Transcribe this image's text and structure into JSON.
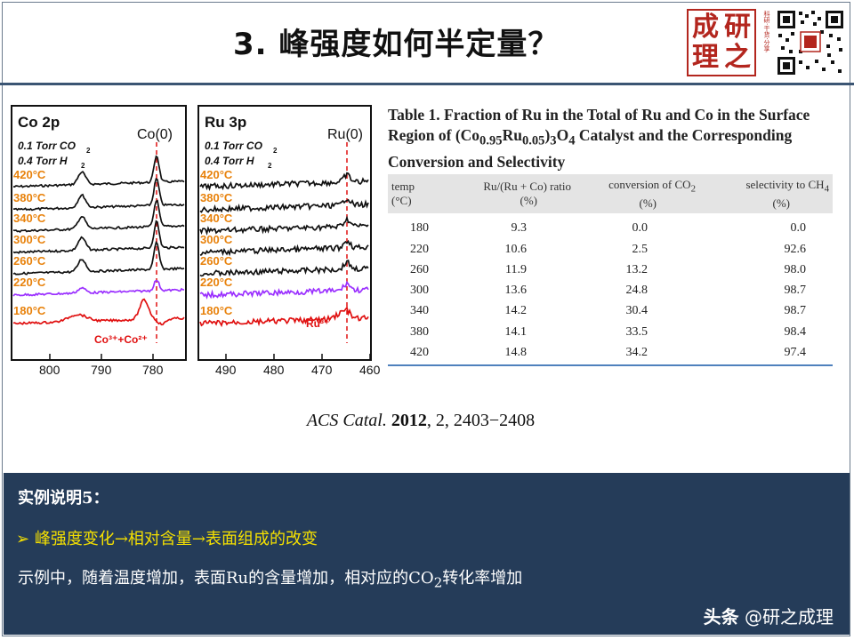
{
  "slide": {
    "title": "3. 峰强度如何半定量？"
  },
  "logo": {
    "seal_chars": [
      "成",
      "研",
      "理",
      "之"
    ],
    "seal_subtext": "科研·干货·分享"
  },
  "figure": {
    "panels": [
      {
        "title": "Co 2p",
        "peak_label": "Co(0)",
        "conditions": [
          "0.1 Torr CO",
          "0.4 Torr H"
        ],
        "condition_subs": [
          "2",
          "2"
        ],
        "temps": [
          "420°C",
          "380°C",
          "340°C",
          "300°C",
          "260°C",
          "220°C",
          "180°C"
        ],
        "species_label": "Co³⁺+Co²⁺",
        "x_ticks": [
          "800",
          "790",
          "780"
        ]
      },
      {
        "title": "Ru 3p",
        "peak_label": "Ru(0)",
        "conditions": [
          "0.1 Torr CO",
          "0.4 Torr H"
        ],
        "condition_subs": [
          "2",
          "2"
        ],
        "temps": [
          "420°C",
          "380°C",
          "340°C",
          "300°C",
          "260°C",
          "220°C",
          "180°C"
        ],
        "species_label": "Ru³⁺",
        "x_ticks": [
          "490",
          "480",
          "470",
          "460"
        ]
      }
    ],
    "colors": {
      "temp_label": "#e8820c",
      "trace_default": "#111111",
      "trace_220": "#9b30ff",
      "trace_180": "#e01010",
      "marker": "#e01010"
    }
  },
  "table": {
    "caption_parts": {
      "pre": "Table 1. Fraction of Ru in the Total of Ru and Co in the Surface Region of (Co",
      "sub1": "0.95",
      "mid1": "Ru",
      "sub2": "0.05",
      "mid2": ")",
      "sub3": "3",
      "mid3": "O",
      "sub4": "4",
      "post": " Catalyst and the Corresponding Conversion and Selectivity"
    },
    "headers": [
      [
        "temp",
        "(°C)"
      ],
      [
        "Ru/(Ru + Co) ratio",
        "(%)"
      ],
      [
        "conversion of CO",
        "(%)"
      ],
      [
        "selectivity to CH",
        "(%)"
      ]
    ],
    "header_subs": [
      "",
      "",
      "2",
      "4"
    ],
    "rows": [
      [
        "180",
        "9.3",
        "0.0",
        "0.0"
      ],
      [
        "220",
        "10.6",
        "2.5",
        "92.6"
      ],
      [
        "260",
        "11.9",
        "13.2",
        "98.0"
      ],
      [
        "300",
        "13.6",
        "24.8",
        "98.7"
      ],
      [
        "340",
        "14.2",
        "30.4",
        "98.7"
      ],
      [
        "380",
        "14.1",
        "33.5",
        "98.4"
      ],
      [
        "420",
        "14.8",
        "34.2",
        "97.4"
      ]
    ]
  },
  "citation": {
    "journal": "ACS Catal.",
    "year": "2012",
    "rest": ", 2, 2403−2408"
  },
  "example": {
    "title": "实例说明5：",
    "bullet_marker": "➢",
    "bullet_text": "峰强度变化→相对含量→表面组成的改变",
    "line_pre": "示例中，随着温度增加，表面Ru的含量增加，相对应的CO",
    "line_sub": "2",
    "line_post": "转化率增加"
  },
  "watermark": {
    "brand": "头条",
    "handle": " @研之成理"
  }
}
